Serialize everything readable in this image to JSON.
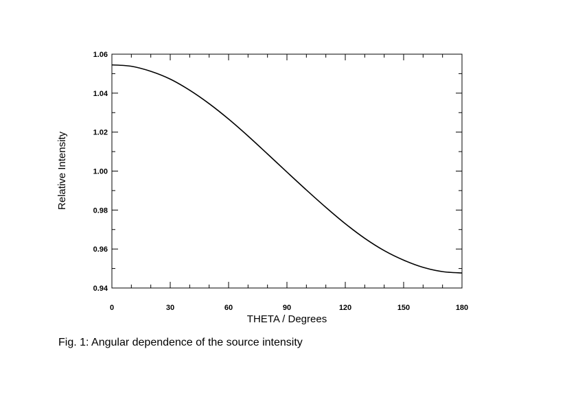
{
  "chart_data": {
    "type": "line",
    "title": "",
    "xlabel": "THETA / Degrees",
    "ylabel": "Relative Intensity",
    "xlim": [
      0,
      180
    ],
    "ylim": [
      0.94,
      1.06
    ],
    "x_ticks": [
      0,
      30,
      60,
      90,
      120,
      150,
      180
    ],
    "x_tick_labels": [
      "0",
      "30",
      "60",
      "90",
      "120",
      "150",
      "180"
    ],
    "y_ticks": [
      0.94,
      0.96,
      0.98,
      1.0,
      1.02,
      1.04,
      1.06
    ],
    "y_tick_labels": [
      "0.94",
      "0.96",
      "0.98",
      "1.00",
      "1.02",
      "1.04",
      "1.06"
    ],
    "grid": false,
    "legend": "none",
    "line_color": "#000000",
    "series": [
      {
        "x": [
          0,
          10,
          20,
          30,
          40,
          50,
          60,
          70,
          80,
          90,
          100,
          110,
          120,
          130,
          140,
          150,
          160,
          170,
          180
        ],
        "y": [
          1.0545,
          1.0538,
          1.0512,
          1.0472,
          1.0415,
          1.0346,
          1.0267,
          1.018,
          1.0088,
          0.9995,
          0.9903,
          0.9814,
          0.973,
          0.9655,
          0.9592,
          0.9543,
          0.9506,
          0.9484,
          0.9477
        ]
      }
    ]
  },
  "caption": "Fig. 1:  Angular dependence of the source intensity"
}
